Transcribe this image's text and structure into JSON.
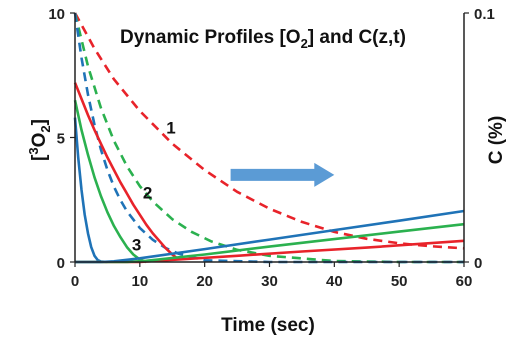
{
  "chart_data": {
    "type": "line",
    "title_parts": {
      "prefix": "Dynamic Profiles [O",
      "sub": "2",
      "suffix": "] and C(z,t)"
    },
    "xlabel": "Time (sec)",
    "ylabel_left_parts": {
      "open": "[",
      "sup": "3",
      "mid": "O",
      "sub": "2",
      "close": "]"
    },
    "ylabel_right": "C (%)",
    "xlim": [
      0,
      60
    ],
    "ylim_left": [
      0,
      10
    ],
    "ylim_right": [
      0,
      0.1
    ],
    "x_ticks": [
      "0",
      "10",
      "20",
      "30",
      "40",
      "50",
      "60"
    ],
    "y_left_ticks": [
      "0",
      "5",
      "10"
    ],
    "y_right_ticks": [
      "0",
      "0.1"
    ],
    "grid": false,
    "curve_labels": [
      {
        "text": "1",
        "x": 14.8,
        "y": 5.4
      },
      {
        "text": "2",
        "x": 11.2,
        "y": 2.8
      },
      {
        "text": "3",
        "x": 9.5,
        "y": 0.7
      }
    ],
    "arrow": {
      "from": [
        24,
        3.5
      ],
      "to": [
        40,
        3.5
      ],
      "color": "#5b9bd5"
    },
    "colors": {
      "red": "#e8232a",
      "green": "#2bb14f",
      "blue": "#1f73b7"
    },
    "series": [
      {
        "axis": "left",
        "color": "#e8232a",
        "dashed": true,
        "x": [
          0,
          3,
          6,
          10,
          15,
          20,
          25,
          30,
          35,
          40,
          45,
          50,
          55,
          60
        ],
        "y": [
          10,
          8.57,
          7.34,
          6.07,
          4.75,
          3.69,
          2.82,
          2.14,
          1.61,
          1.21,
          0.93,
          0.75,
          0.63,
          0.55
        ]
      },
      {
        "axis": "left",
        "color": "#2bb14f",
        "dashed": true,
        "x": [
          0,
          2,
          4,
          6,
          8,
          10,
          12,
          15,
          18,
          21,
          25,
          30,
          40,
          50,
          60
        ],
        "y": [
          10,
          7.86,
          6.19,
          4.87,
          3.85,
          3.05,
          2.43,
          1.72,
          1.21,
          0.83,
          0.49,
          0.25,
          0.04,
          0,
          0
        ]
      },
      {
        "axis": "left",
        "color": "#1f73b7",
        "dashed": true,
        "x": [
          0,
          1,
          2,
          3,
          4,
          5,
          6,
          7,
          8,
          10,
          12,
          14,
          16,
          20,
          30,
          60
        ],
        "y": [
          10,
          8.2,
          6.72,
          5.51,
          4.52,
          3.7,
          3.03,
          2.49,
          2.04,
          1.37,
          0.89,
          0.56,
          0.33,
          0.07,
          0,
          0
        ]
      },
      {
        "axis": "left",
        "color": "#e8232a",
        "dashed": false,
        "x": [
          0,
          1,
          2,
          3,
          4,
          5,
          6,
          7,
          8,
          9,
          10,
          11,
          12,
          13,
          14,
          15,
          16
        ],
        "y": [
          7.2,
          6.55,
          5.9,
          5.3,
          4.75,
          4.2,
          3.7,
          3.2,
          2.75,
          2.3,
          1.9,
          1.5,
          1.15,
          0.85,
          0.55,
          0.3,
          0.1
        ]
      },
      {
        "axis": "left",
        "color": "#2bb14f",
        "dashed": false,
        "x": [
          0,
          1,
          2,
          3,
          4,
          5,
          6,
          7,
          8,
          9,
          10,
          11
        ],
        "y": [
          6.5,
          5.3,
          4.3,
          3.4,
          2.65,
          2,
          1.45,
          1,
          0.6,
          0.3,
          0.1,
          0
        ]
      },
      {
        "axis": "left",
        "color": "#1f73b7",
        "dashed": false,
        "x": [
          0,
          0.5,
          1,
          1.5,
          2,
          2.5,
          3,
          3.5,
          4,
          5
        ],
        "y": [
          5.8,
          4.2,
          2.9,
          1.9,
          1.15,
          0.6,
          0.25,
          0.08,
          0.02,
          0
        ]
      },
      {
        "axis": "right",
        "color": "#e8232a",
        "dashed": false,
        "x": [
          0,
          10,
          16,
          25,
          35,
          45,
          60
        ],
        "y": [
          0,
          0,
          0.001,
          0.0025,
          0.0042,
          0.0058,
          0.0085
        ]
      },
      {
        "axis": "right",
        "color": "#2bb14f",
        "dashed": false,
        "x": [
          0,
          8,
          11,
          20,
          30,
          40,
          50,
          60
        ],
        "y": [
          0,
          0,
          0.0005,
          0.003,
          0.0062,
          0.0092,
          0.0122,
          0.0152
        ]
      },
      {
        "axis": "right",
        "color": "#1f73b7",
        "dashed": false,
        "x": [
          0,
          4,
          6,
          10,
          20,
          30,
          40,
          50,
          60
        ],
        "y": [
          0,
          0,
          0.0003,
          0.0015,
          0.0052,
          0.009,
          0.0128,
          0.0166,
          0.0205
        ]
      }
    ]
  }
}
